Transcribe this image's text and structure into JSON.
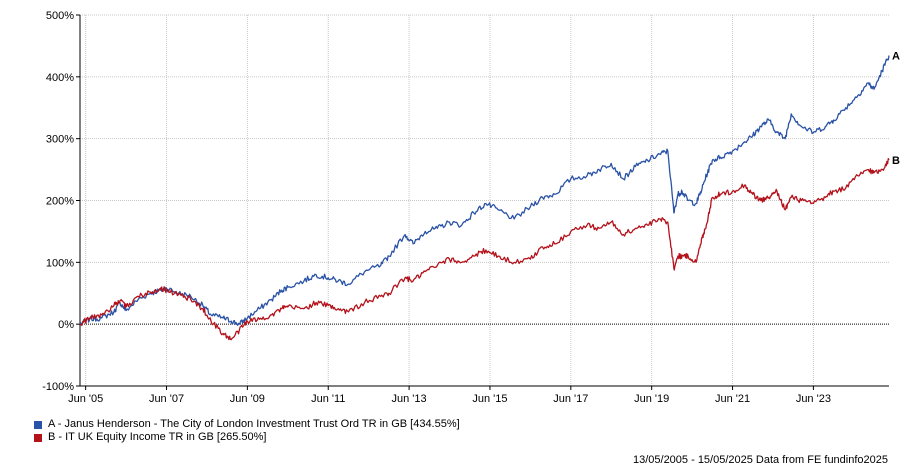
{
  "chart_data": {
    "type": "line",
    "y_ticks": [
      -100,
      0,
      100,
      200,
      300,
      400,
      500
    ],
    "y_tick_labels": [
      "-100%",
      "0%",
      "100%",
      "200%",
      "300%",
      "400%",
      "500%"
    ],
    "ylim": [
      -100,
      500
    ],
    "xlim": [
      2005.36,
      2025.37
    ],
    "x_ticks": [
      2005.5,
      2007.5,
      2009.5,
      2011.5,
      2013.5,
      2015.5,
      2017.5,
      2019.5,
      2021.5,
      2023.5
    ],
    "x_tick_labels": [
      "Jun '05",
      "Jun '07",
      "Jun '09",
      "Jun '11",
      "Jun '13",
      "Jun '15",
      "Jun '17",
      "Jun '19",
      "Jun '21",
      "Jun '23"
    ],
    "grid": true,
    "zero_line": true,
    "legend_position": "bottom-left",
    "series": [
      {
        "id": "A",
        "end_label": "A",
        "legend": "A - Janus Henderson - The City of London Investment Trust Ord TR in GB [434.55%]",
        "color": "#2a52a6",
        "x": [
          2005.36,
          2005.6,
          2005.9,
          2006.2,
          2006.35,
          2006.5,
          2006.8,
          2007.1,
          2007.35,
          2007.5,
          2007.8,
          2008.1,
          2008.4,
          2008.6,
          2008.9,
          2009.1,
          2009.3,
          2009.5,
          2009.8,
          2010.1,
          2010.35,
          2010.5,
          2010.9,
          2011.2,
          2011.5,
          2011.75,
          2012.0,
          2012.4,
          2012.8,
          2013.0,
          2013.4,
          2013.6,
          2013.9,
          2014.2,
          2014.5,
          2014.8,
          2015.1,
          2015.4,
          2015.7,
          2016.1,
          2016.5,
          2016.8,
          2017.1,
          2017.5,
          2017.9,
          2018.2,
          2018.5,
          2018.8,
          2019.1,
          2019.4,
          2019.7,
          2019.9,
          2020.05,
          2020.15,
          2020.25,
          2020.4,
          2020.6,
          2020.75,
          2020.85,
          2021.0,
          2021.2,
          2021.5,
          2021.8,
          2022.0,
          2022.2,
          2022.4,
          2022.6,
          2022.8,
          2022.95,
          2023.2,
          2023.5,
          2023.8,
          2024.0,
          2024.3,
          2024.6,
          2024.85,
          2025.0,
          2025.2,
          2025.37
        ],
        "y": [
          0,
          8,
          10,
          20,
          35,
          22,
          40,
          50,
          55,
          58,
          50,
          45,
          30,
          15,
          10,
          5,
          0,
          10,
          25,
          40,
          55,
          60,
          70,
          80,
          75,
          70,
          65,
          85,
          95,
          110,
          145,
          130,
          150,
          155,
          165,
          160,
          180,
          195,
          185,
          170,
          190,
          205,
          210,
          235,
          240,
          250,
          260,
          235,
          255,
          265,
          275,
          280,
          180,
          210,
          215,
          200,
          195,
          220,
          240,
          265,
          270,
          280,
          295,
          305,
          320,
          330,
          310,
          300,
          340,
          320,
          310,
          320,
          330,
          350,
          370,
          390,
          380,
          410,
          434.55
        ]
      },
      {
        "id": "B",
        "end_label": "B",
        "legend": "B - IT UK Equity Income TR in GB [265.50%]",
        "color": "#b4121b",
        "x": [
          2005.36,
          2005.6,
          2005.9,
          2006.2,
          2006.35,
          2006.5,
          2006.8,
          2007.1,
          2007.35,
          2007.5,
          2007.8,
          2008.1,
          2008.4,
          2008.6,
          2008.9,
          2009.1,
          2009.3,
          2009.5,
          2009.8,
          2010.1,
          2010.35,
          2010.5,
          2010.9,
          2011.2,
          2011.5,
          2011.75,
          2012.0,
          2012.4,
          2012.8,
          2013.0,
          2013.4,
          2013.6,
          2013.9,
          2014.2,
          2014.5,
          2014.8,
          2015.1,
          2015.4,
          2015.7,
          2016.1,
          2016.5,
          2016.8,
          2017.1,
          2017.5,
          2017.9,
          2018.2,
          2018.5,
          2018.8,
          2019.1,
          2019.4,
          2019.7,
          2019.9,
          2020.05,
          2020.15,
          2020.25,
          2020.4,
          2020.6,
          2020.75,
          2020.85,
          2021.0,
          2021.2,
          2021.5,
          2021.8,
          2022.0,
          2022.2,
          2022.4,
          2022.6,
          2022.8,
          2022.95,
          2023.2,
          2023.5,
          2023.8,
          2024.0,
          2024.3,
          2024.6,
          2024.85,
          2025.0,
          2025.2,
          2025.37
        ],
        "y": [
          0,
          10,
          15,
          30,
          38,
          28,
          45,
          52,
          58,
          55,
          48,
          40,
          25,
          5,
          -15,
          -25,
          -10,
          5,
          8,
          15,
          25,
          28,
          25,
          35,
          30,
          25,
          20,
          35,
          45,
          50,
          75,
          70,
          85,
          95,
          105,
          100,
          110,
          120,
          110,
          100,
          105,
          125,
          130,
          150,
          160,
          155,
          165,
          145,
          155,
          160,
          170,
          165,
          90,
          110,
          110,
          110,
          100,
          140,
          160,
          205,
          210,
          215,
          225,
          210,
          200,
          205,
          215,
          185,
          205,
          200,
          195,
          205,
          215,
          220,
          240,
          250,
          245,
          250,
          265.5
        ]
      }
    ]
  },
  "footer": "13/05/2005 - 15/05/2025 Data from FE fundinfo2025"
}
